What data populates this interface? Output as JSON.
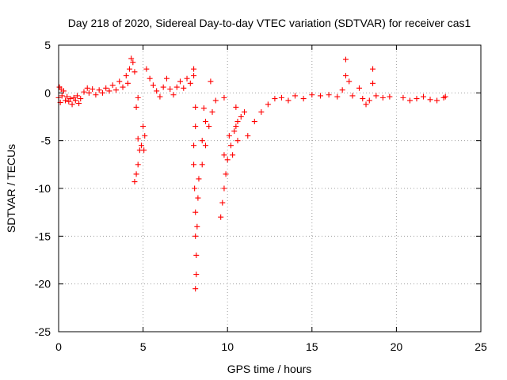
{
  "chart_data": {
    "type": "scatter",
    "title": "Day 218 of 2020, Sidereal Day-to-day VTEC variation (SDTVAR) for receiver cas1",
    "xlabel": "GPS time / hours",
    "ylabel": "SDTVAR / TECUs",
    "xlim": [
      0,
      25
    ],
    "ylim": [
      -25,
      5
    ],
    "xticks": [
      0,
      5,
      10,
      15,
      20,
      25
    ],
    "yticks": [
      5,
      0,
      -5,
      -10,
      -15,
      -20,
      -25
    ],
    "xtick_labels": [
      "0",
      "5",
      "10",
      "15",
      "20",
      "25"
    ],
    "ytick_labels": [
      "5",
      "0",
      "-5",
      "-10",
      "-15",
      "-20",
      "-25"
    ],
    "grid": true,
    "marker": "+",
    "color": "#ff0000",
    "series": [
      {
        "name": "SDTVAR",
        "points": [
          [
            0.0,
            -0.5
          ],
          [
            0.05,
            0.6
          ],
          [
            0.1,
            -1.0
          ],
          [
            0.15,
            0.4
          ],
          [
            0.2,
            -0.3
          ],
          [
            0.3,
            0.2
          ],
          [
            0.4,
            -0.8
          ],
          [
            0.5,
            -0.4
          ],
          [
            0.6,
            -0.9
          ],
          [
            0.7,
            -0.6
          ],
          [
            0.8,
            -1.2
          ],
          [
            0.9,
            -0.5
          ],
          [
            1.0,
            -0.8
          ],
          [
            1.1,
            -0.3
          ],
          [
            1.2,
            -1.1
          ],
          [
            1.3,
            -0.6
          ],
          [
            1.5,
            0.1
          ],
          [
            1.7,
            0.5
          ],
          [
            1.8,
            0.0
          ],
          [
            2.0,
            0.4
          ],
          [
            2.2,
            -0.2
          ],
          [
            2.4,
            0.3
          ],
          [
            2.6,
            0.0
          ],
          [
            2.8,
            0.5
          ],
          [
            3.0,
            0.2
          ],
          [
            3.2,
            0.8
          ],
          [
            3.4,
            0.3
          ],
          [
            3.6,
            1.2
          ],
          [
            3.8,
            0.6
          ],
          [
            4.0,
            1.8
          ],
          [
            4.1,
            1.0
          ],
          [
            4.2,
            2.5
          ],
          [
            4.3,
            3.6
          ],
          [
            4.4,
            3.2
          ],
          [
            4.5,
            2.2
          ],
          [
            4.5,
            -9.3
          ],
          [
            4.6,
            -8.5
          ],
          [
            4.7,
            -7.5
          ],
          [
            4.8,
            -6.0
          ],
          [
            4.7,
            -4.8
          ],
          [
            4.9,
            -5.5
          ],
          [
            5.0,
            -3.5
          ],
          [
            5.05,
            -6.0
          ],
          [
            5.1,
            -4.5
          ],
          [
            4.6,
            -1.5
          ],
          [
            4.7,
            -0.5
          ],
          [
            5.2,
            2.5
          ],
          [
            5.4,
            1.5
          ],
          [
            5.6,
            0.8
          ],
          [
            5.8,
            0.2
          ],
          [
            6.0,
            -0.4
          ],
          [
            6.2,
            0.6
          ],
          [
            6.4,
            1.5
          ],
          [
            6.6,
            0.4
          ],
          [
            6.8,
            -0.2
          ],
          [
            7.0,
            0.6
          ],
          [
            7.2,
            1.2
          ],
          [
            7.4,
            0.5
          ],
          [
            7.6,
            1.5
          ],
          [
            7.8,
            1.0
          ],
          [
            8.0,
            2.5
          ],
          [
            8.0,
            1.8
          ],
          [
            8.1,
            -1.5
          ],
          [
            8.1,
            -3.5
          ],
          [
            8.0,
            -5.5
          ],
          [
            8.0,
            -7.5
          ],
          [
            8.05,
            -10.0
          ],
          [
            8.1,
            -12.5
          ],
          [
            8.1,
            -15.0
          ],
          [
            8.15,
            -17.0
          ],
          [
            8.15,
            -19.0
          ],
          [
            8.1,
            -20.5
          ],
          [
            8.2,
            -14.0
          ],
          [
            8.25,
            -11.0
          ],
          [
            8.3,
            -9.0
          ],
          [
            8.5,
            -7.5
          ],
          [
            8.7,
            -5.5
          ],
          [
            8.9,
            -3.5
          ],
          [
            9.1,
            -2.0
          ],
          [
            8.5,
            -5.0
          ],
          [
            8.7,
            -3.0
          ],
          [
            9.3,
            -0.8
          ],
          [
            9.0,
            1.2
          ],
          [
            8.6,
            -1.6
          ],
          [
            9.6,
            -13.0
          ],
          [
            9.7,
            -11.5
          ],
          [
            9.8,
            -10.0
          ],
          [
            9.9,
            -8.5
          ],
          [
            10.0,
            -7.0
          ],
          [
            10.2,
            -5.5
          ],
          [
            10.4,
            -4.0
          ],
          [
            10.6,
            -3.0
          ],
          [
            10.8,
            -2.5
          ],
          [
            11.0,
            -2.0
          ],
          [
            9.8,
            -6.5
          ],
          [
            10.1,
            -4.5
          ],
          [
            10.5,
            -3.5
          ],
          [
            10.3,
            -6.5
          ],
          [
            10.6,
            -5.0
          ],
          [
            11.2,
            -4.5
          ],
          [
            11.6,
            -3.0
          ],
          [
            12.0,
            -2.0
          ],
          [
            12.4,
            -1.2
          ],
          [
            12.8,
            -0.6
          ],
          [
            9.8,
            -0.5
          ],
          [
            10.5,
            -1.5
          ],
          [
            13.2,
            -0.5
          ],
          [
            13.6,
            -0.8
          ],
          [
            14.0,
            -0.3
          ],
          [
            14.5,
            -0.6
          ],
          [
            15.0,
            -0.2
          ],
          [
            15.5,
            -0.3
          ],
          [
            16.0,
            -0.2
          ],
          [
            16.5,
            -0.4
          ],
          [
            16.8,
            0.3
          ],
          [
            17.0,
            1.8
          ],
          [
            17.2,
            1.2
          ],
          [
            17.0,
            3.5
          ],
          [
            17.4,
            -0.3
          ],
          [
            17.8,
            0.5
          ],
          [
            18.0,
            -0.6
          ],
          [
            18.2,
            -1.2
          ],
          [
            18.4,
            -0.8
          ],
          [
            18.6,
            2.5
          ],
          [
            18.6,
            1.0
          ],
          [
            18.8,
            -0.3
          ],
          [
            19.2,
            -0.5
          ],
          [
            19.6,
            -0.4
          ],
          [
            20.4,
            -0.5
          ],
          [
            20.8,
            -0.8
          ],
          [
            21.2,
            -0.6
          ],
          [
            21.6,
            -0.4
          ],
          [
            22.0,
            -0.7
          ],
          [
            22.4,
            -0.8
          ],
          [
            22.8,
            -0.5
          ],
          [
            22.9,
            -0.4
          ]
        ]
      }
    ]
  }
}
